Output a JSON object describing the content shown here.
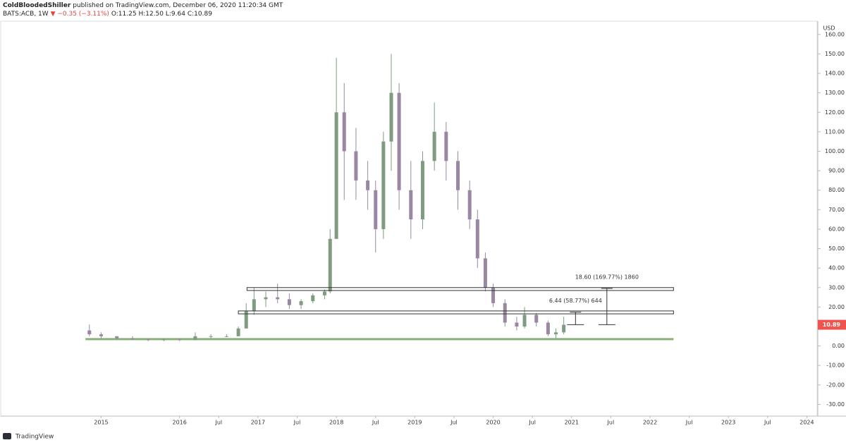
{
  "header": {
    "author": "ColdBloodedShiller",
    "published": "published on TradingView.com, December 06, 2020 11:20:34 GMT",
    "symbol": "BATS:ACB, 1W",
    "change": "▼ −0.35 (−3.11%)",
    "open": "O:11.25",
    "high": "H:12.50",
    "low": "L:9.64",
    "close": "C:10.89"
  },
  "footer": {
    "brand": "TradingView"
  },
  "chart_data": {
    "type": "candlestick",
    "currency": "USD",
    "last_price": 10.89,
    "up_color": "#7f9c80",
    "down_color": "#9a88a3",
    "x": [
      2014.85,
      2015.0,
      2015.2,
      2015.4,
      2015.6,
      2015.8,
      2016.0,
      2016.2,
      2016.4,
      2016.6,
      2016.75,
      2016.85,
      2016.95,
      2017.1,
      2017.25,
      2017.4,
      2017.55,
      2017.7,
      2017.85,
      2017.92,
      2018.0,
      2018.1,
      2018.25,
      2018.4,
      2018.5,
      2018.6,
      2018.7,
      2018.8,
      2018.95,
      2019.1,
      2019.25,
      2019.4,
      2019.55,
      2019.7,
      2019.8,
      2019.9,
      2020.0,
      2020.15,
      2020.3,
      2020.4,
      2020.55,
      2020.7,
      2020.8,
      2020.9
    ],
    "open": [
      8,
      6,
      5,
      4,
      3.5,
      3,
      3.5,
      3,
      5,
      5,
      5,
      9,
      18,
      24,
      25,
      24,
      21,
      23,
      26,
      28,
      55,
      120,
      100,
      85,
      80,
      60,
      105,
      130,
      80,
      65,
      95,
      110,
      95,
      80,
      65,
      45,
      30,
      22,
      12,
      10,
      16,
      12,
      6,
      7
    ],
    "high": [
      11,
      7,
      5,
      5,
      4,
      4,
      4,
      7,
      6,
      6,
      10,
      22,
      30,
      28,
      32,
      27,
      24,
      27,
      29,
      60,
      148,
      135,
      112,
      95,
      85,
      110,
      150,
      135,
      95,
      100,
      125,
      115,
      100,
      85,
      70,
      48,
      32,
      24,
      15,
      20,
      17,
      13,
      9,
      15
    ],
    "low": [
      5,
      4,
      3,
      3,
      2.5,
      2.5,
      2.5,
      3,
      4,
      4.5,
      5,
      9,
      16,
      20,
      22,
      19,
      19,
      22,
      24,
      27,
      55,
      75,
      75,
      70,
      48,
      55,
      90,
      70,
      55,
      60,
      90,
      85,
      70,
      60,
      40,
      28,
      20,
      10,
      8,
      9,
      10,
      5,
      4,
      6
    ],
    "close": [
      6,
      5,
      4,
      3.5,
      3,
      3.5,
      3,
      5,
      5,
      5,
      9,
      18,
      24,
      25,
      24,
      21,
      23,
      26,
      28,
      55,
      120,
      100,
      85,
      80,
      60,
      105,
      130,
      80,
      65,
      95,
      110,
      95,
      80,
      65,
      45,
      30,
      22,
      12,
      10,
      16,
      12,
      6,
      7,
      10.89
    ],
    "boxes": [
      {
        "x": [
          2016.86,
          2022.3
        ],
        "y": [
          28.5,
          30
        ]
      },
      {
        "x": [
          2016.75,
          2022.3
        ],
        "y": [
          16.5,
          18
        ]
      }
    ],
    "support": {
      "x": [
        2014.8,
        2022.3
      ],
      "y": 3.5,
      "color": "#8ab07a"
    },
    "measures": [
      {
        "x": 2021.05,
        "from": 10.95,
        "to": 17.39,
        "label": "6.44 (58.77%) 644"
      },
      {
        "x": 2021.45,
        "from": 10.96,
        "to": 29.56,
        "label": "18.60 (169.77%) 1860"
      }
    ],
    "xlim": [
      2013.71,
      2024.14
    ],
    "xticks": [
      2015,
      2016,
      {
        "value": 2016.5,
        "label": "Jul"
      },
      2017,
      {
        "value": 2017.5,
        "label": "Jul"
      },
      2018,
      {
        "value": 2018.5,
        "label": "Jul"
      },
      2019,
      {
        "value": 2019.5,
        "label": "Jul"
      },
      2020,
      {
        "value": 2020.5,
        "label": "Jul"
      },
      2021,
      {
        "value": 2021.5,
        "label": "Jul"
      },
      2022,
      {
        "value": 2022.5,
        "label": "Jul"
      },
      2023,
      {
        "value": 2023.5,
        "label": "Jul"
      },
      2024
    ],
    "ylim": [
      -36,
      165
    ],
    "yticks": [
      {
        "value": 160,
        "label": "160.00"
      },
      {
        "value": 150,
        "label": "150.00"
      },
      {
        "value": 140,
        "label": "140.00"
      },
      {
        "value": 130,
        "label": "130.00"
      },
      {
        "value": 120,
        "label": "120.00"
      },
      {
        "value": 110,
        "label": "110.00"
      },
      {
        "value": 100,
        "label": "100.00"
      },
      {
        "value": 90,
        "label": "90.00"
      },
      {
        "value": 80,
        "label": "80.00"
      },
      {
        "value": 70,
        "label": "70.00"
      },
      {
        "value": 60,
        "label": "60.00"
      },
      {
        "value": 50,
        "label": "50.00"
      },
      {
        "value": 40,
        "label": "40.00"
      },
      {
        "value": 30,
        "label": "30.00"
      },
      {
        "value": 20,
        "label": "20.00"
      },
      {
        "value": 0,
        "label": "0.00"
      },
      {
        "value": -10,
        "label": "-10.00"
      },
      {
        "value": -20,
        "label": "-20.00"
      },
      {
        "value": -30,
        "label": "-30.00"
      }
    ]
  }
}
